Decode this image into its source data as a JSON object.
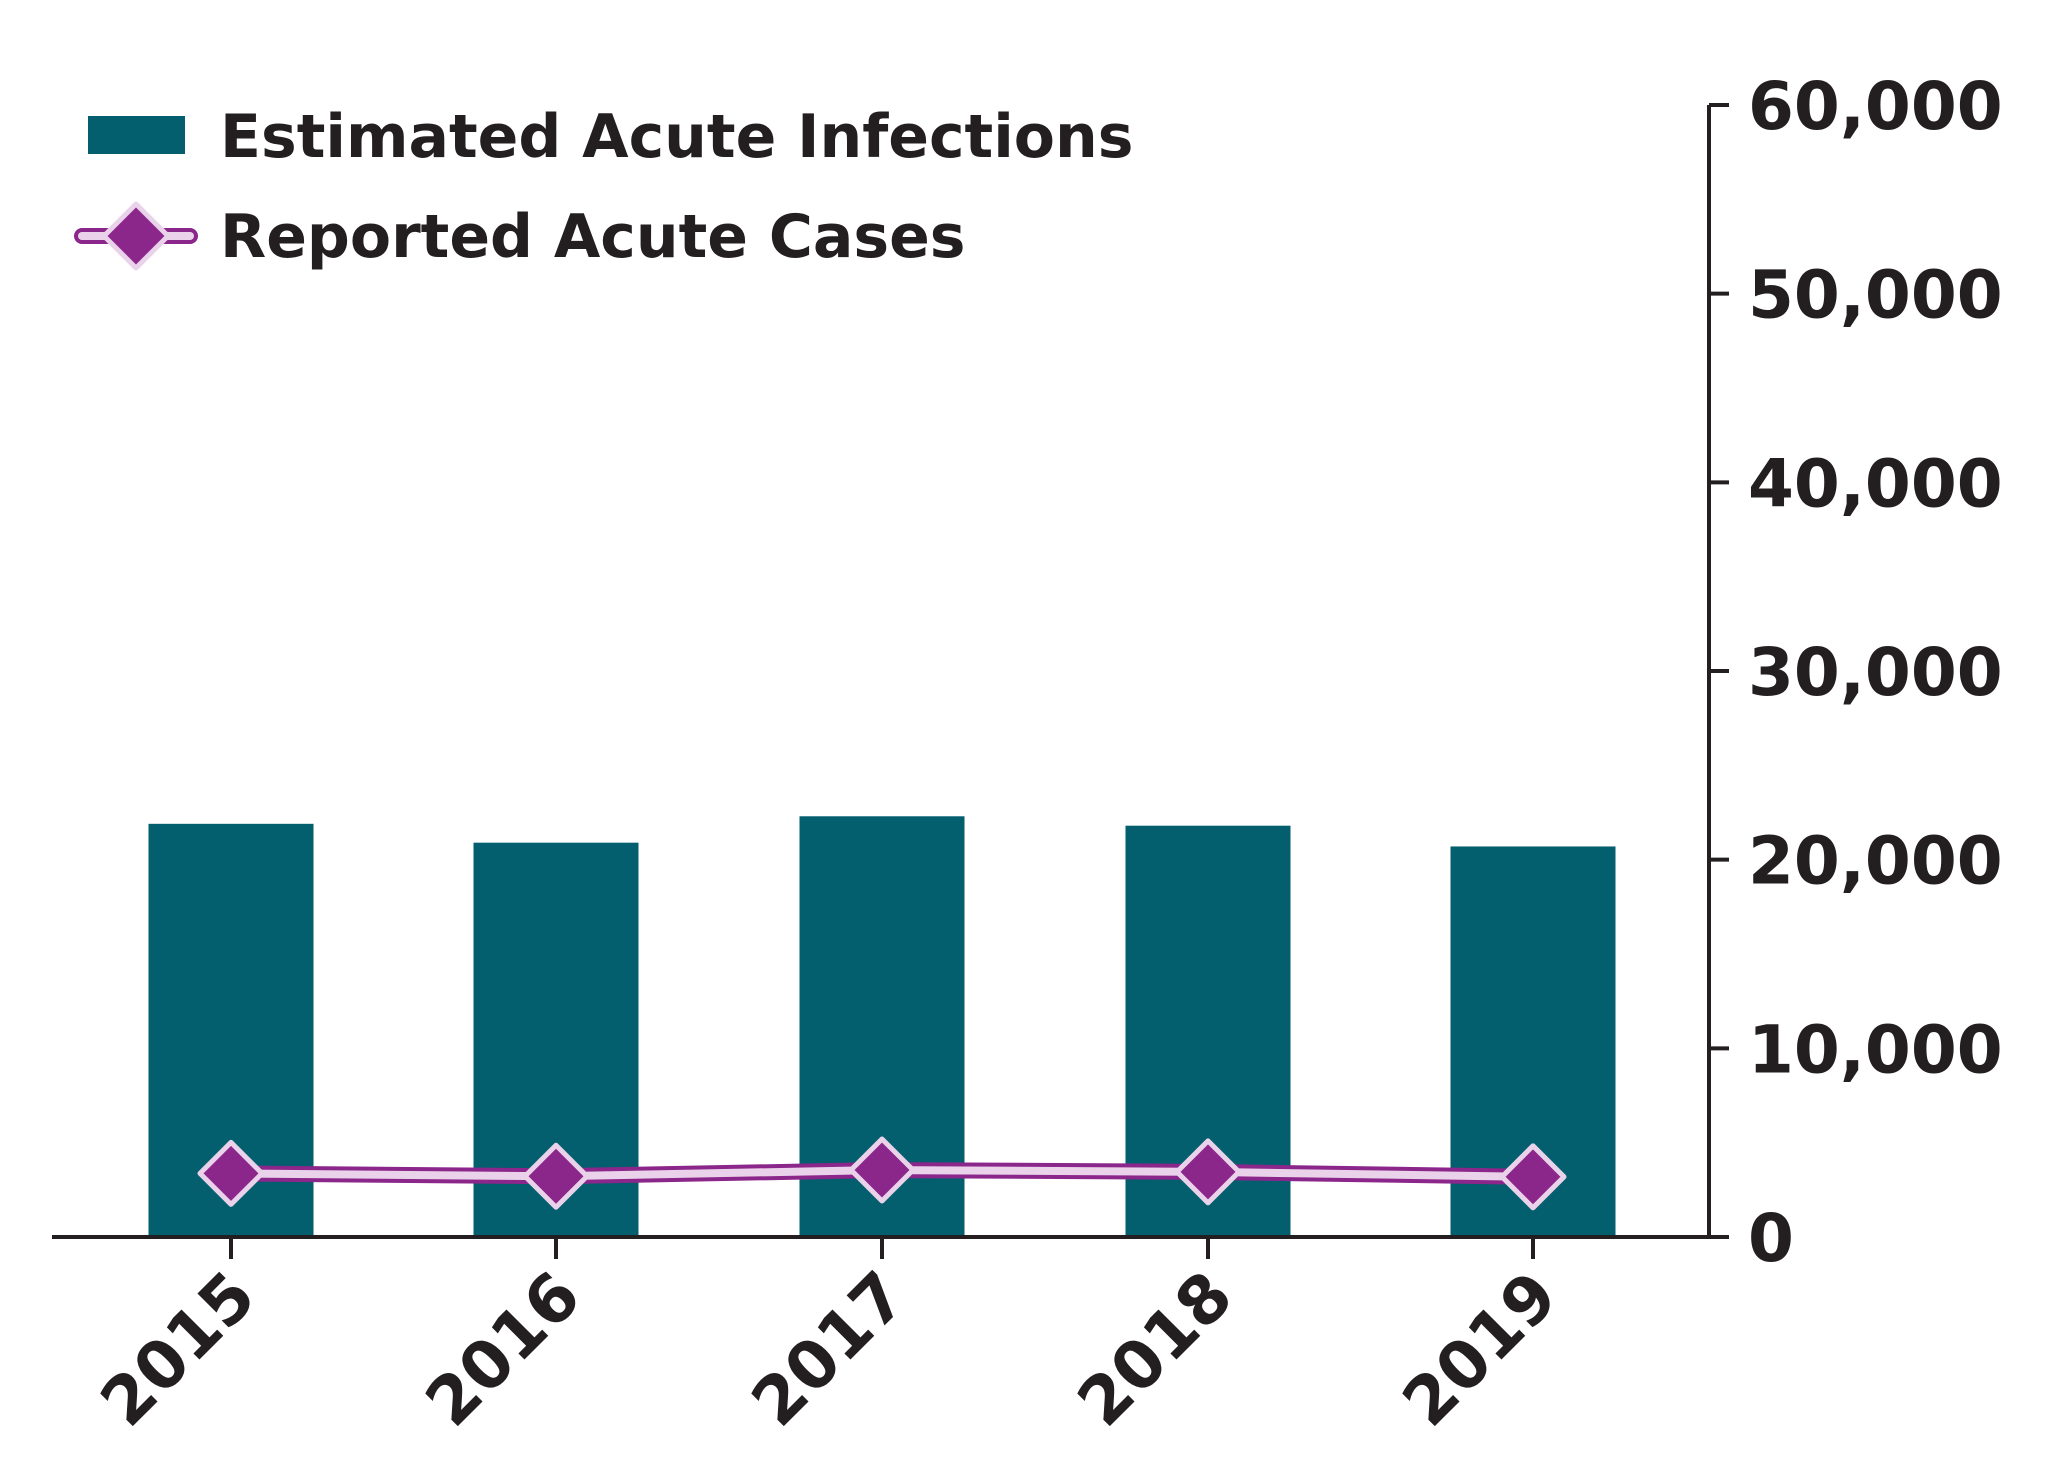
{
  "chart_data": {
    "type": "bar",
    "categories": [
      "2015",
      "2016",
      "2017",
      "2018",
      "2019"
    ],
    "series": [
      {
        "name": "Estimated Acute Infections",
        "kind": "bar",
        "values": [
          21900,
          20900,
          22300,
          21800,
          20700
        ],
        "color": "#035e6e"
      },
      {
        "name": "Reported Acute Cases",
        "kind": "line",
        "marker": "diamond",
        "values": [
          3370,
          3220,
          3550,
          3450,
          3190
        ],
        "color": "#8b268b",
        "outline_color": "#ead3ea"
      }
    ],
    "y_axis": {
      "position": "right",
      "ylim": [
        0,
        60000
      ],
      "ticks": [
        0,
        10000,
        20000,
        30000,
        40000,
        50000,
        60000
      ],
      "tick_labels": [
        "0",
        "10,000",
        "20,000",
        "30,000",
        "40,000",
        "50,000",
        "60,000"
      ]
    },
    "legend": {
      "position": "top-left",
      "entries": [
        "Estimated Acute Infections",
        "Reported Acute Cases"
      ]
    },
    "title": "",
    "xlabel": "",
    "ylabel": "",
    "grid": false
  }
}
